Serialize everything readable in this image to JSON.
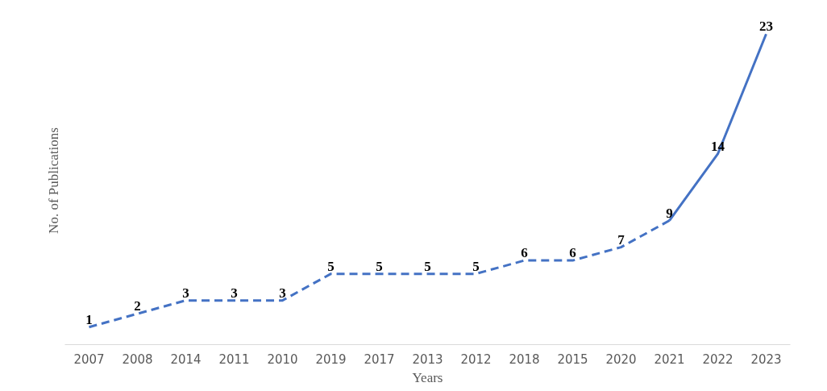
{
  "chart_data": {
    "type": "line",
    "xlabel": "Years",
    "ylabel": "No. of Publications",
    "categories": [
      "2007",
      "2008",
      "2014",
      "2011",
      "2010",
      "2019",
      "2017",
      "2013",
      "2012",
      "2018",
      "2015",
      "2020",
      "2021",
      "2022",
      "2023"
    ],
    "series": [
      {
        "color": "#4472c4",
        "line_style": "dashed",
        "values": [
          1,
          2,
          3,
          3,
          3,
          5,
          5,
          5,
          5,
          6,
          6,
          7,
          9,
          null,
          null
        ]
      },
      {
        "color": "#4472c4",
        "line_style": "solid",
        "values": [
          null,
          null,
          null,
          null,
          null,
          null,
          null,
          null,
          null,
          null,
          null,
          null,
          9,
          14,
          23
        ],
        "value_labels": [
          null,
          null,
          null,
          null,
          null,
          null,
          null,
          null,
          null,
          null,
          null,
          null,
          null,
          "14",
          "23"
        ]
      }
    ],
    "tick_labels": "x",
    "grid": false,
    "data_labels": true
  }
}
